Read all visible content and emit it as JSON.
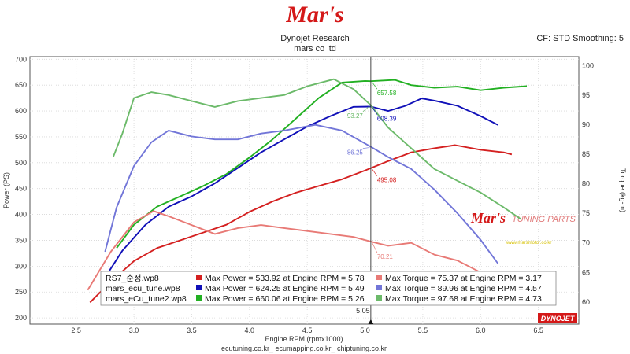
{
  "header": {
    "logo": "Mar's",
    "title": "Dynojet Research",
    "subtitle": "mars co ltd",
    "settings": "CF: STD Smoothing: 5"
  },
  "footer": {
    "credits": "ecutuning.co.kr_ ecumapping.co.kr_ chiptuning.co.kr",
    "brand": "DYNOJET"
  },
  "watermark": {
    "logo": "Mar's",
    "text": "TUNING PARTS",
    "url": "www.marsmotor.co.kr"
  },
  "colors": {
    "power_rs7": "#d42020",
    "power_tune": "#1010b8",
    "power_tune2": "#22b022",
    "torque_rs7": "#e87a76",
    "torque_tune": "#7276d8",
    "torque_tune2": "#6cba6a",
    "cursor": "#333333"
  },
  "chart_data": {
    "type": "line",
    "xlabel": "Engine RPM (rpmx1000)",
    "ylabel": "Power (PS)",
    "y2label": "Torque (kg-m)",
    "xlim": [
      2.1,
      6.85
    ],
    "ylim": [
      188,
      705
    ],
    "y2lim": [
      56.25,
      101.5
    ],
    "xticks": [
      "2.5",
      "3.0",
      "3.5",
      "4.0",
      "4.5",
      "5.0",
      "5.5",
      "6.0",
      "6.5"
    ],
    "yticks": [
      "200",
      "250",
      "300",
      "350",
      "400",
      "450",
      "500",
      "550",
      "600",
      "650",
      "700"
    ],
    "y2ticks": [
      "60",
      "65",
      "70",
      "75",
      "80",
      "85",
      "90",
      "95",
      "100"
    ],
    "grid": true,
    "cursor": {
      "x": 5.05,
      "label": "5.05",
      "annotations": [
        {
          "value": "657.58",
          "series": "power_tune2"
        },
        {
          "value": "608.39",
          "series": "power_tune"
        },
        {
          "value": "495.08",
          "series": "power_rs7"
        },
        {
          "value": "93.27",
          "series": "torque_tune2"
        },
        {
          "value": "86.25",
          "series": "torque_tune"
        },
        {
          "value": "70.21",
          "series": "torque_rs7"
        }
      ]
    },
    "runs": [
      {
        "name": "RS7_순정.wp8",
        "power": "Max Power = 533.92 at Engine RPM = 5.78",
        "torque": "Max Torque = 75.37 at Engine RPM = 3.17"
      },
      {
        "name": "mars_ecu_tune.wp8",
        "power": "Max Power = 624.25 at Engine RPM = 5.49",
        "torque": "Max Torque = 89.96 at Engine RPM = 4.57"
      },
      {
        "name": "mars_eCu_tune2.wp8",
        "power": "Max Power = 660.06 at Engine RPM = 5.26",
        "torque": "Max Torque = 97.68 at Engine RPM = 4.73"
      }
    ],
    "series": [
      {
        "key": "power_rs7",
        "axis": "left",
        "x": [
          2.62,
          2.8,
          3.0,
          3.2,
          3.4,
          3.6,
          3.8,
          4.0,
          4.2,
          4.4,
          4.6,
          4.8,
          5.0,
          5.2,
          5.4,
          5.6,
          5.78,
          6.0,
          6.2,
          6.27
        ],
        "y": [
          230,
          270,
          310,
          335,
          350,
          365,
          380,
          405,
          425,
          442,
          455,
          468,
          485,
          503,
          520,
          528,
          533.92,
          525,
          520,
          516
        ]
      },
      {
        "key": "power_tune",
        "axis": "left",
        "x": [
          2.75,
          2.9,
          3.1,
          3.3,
          3.5,
          3.7,
          3.9,
          4.1,
          4.3,
          4.5,
          4.7,
          4.9,
          5.05,
          5.2,
          5.35,
          5.49,
          5.6,
          5.8,
          6.0,
          6.15
        ],
        "y": [
          278,
          330,
          380,
          415,
          435,
          460,
          490,
          520,
          545,
          570,
          590,
          608,
          608.39,
          600,
          610,
          624.25,
          620,
          610,
          590,
          573
        ]
      },
      {
        "key": "power_tune2",
        "axis": "left",
        "x": [
          2.85,
          3.0,
          3.2,
          3.4,
          3.6,
          3.8,
          4.0,
          4.2,
          4.4,
          4.6,
          4.8,
          5.0,
          5.05,
          5.26,
          5.4,
          5.6,
          5.8,
          6.0,
          6.2,
          6.4
        ],
        "y": [
          335,
          380,
          415,
          435,
          455,
          478,
          510,
          545,
          585,
          625,
          655,
          658,
          657.58,
          660.06,
          650,
          645,
          647,
          640,
          645,
          648
        ]
      },
      {
        "key": "torque_rs7",
        "axis": "right",
        "x": [
          2.6,
          2.8,
          3.0,
          3.17,
          3.3,
          3.5,
          3.7,
          3.9,
          4.1,
          4.3,
          4.5,
          4.7,
          4.9,
          5.05,
          5.2,
          5.4,
          5.6,
          5.8,
          6.0,
          6.1
        ],
        "y": [
          62,
          68.5,
          73.5,
          75.37,
          74.5,
          73,
          71.5,
          72.5,
          73,
          72.5,
          72,
          71.5,
          71,
          70.21,
          69.5,
          70,
          68,
          67,
          65,
          63.5
        ]
      },
      {
        "key": "torque_tune",
        "axis": "right",
        "x": [
          2.75,
          2.85,
          3.0,
          3.15,
          3.3,
          3.5,
          3.7,
          3.9,
          4.1,
          4.3,
          4.57,
          4.8,
          5.05,
          5.2,
          5.4,
          5.6,
          5.8,
          6.0,
          6.15
        ],
        "y": [
          68.5,
          76,
          83,
          87,
          89,
          88,
          87.5,
          87.5,
          88.5,
          89,
          89.96,
          89,
          86.25,
          84.5,
          82.5,
          79,
          75,
          70.5,
          66.5
        ]
      },
      {
        "key": "torque_tune2",
        "axis": "right",
        "x": [
          2.82,
          2.9,
          3.0,
          3.15,
          3.3,
          3.5,
          3.7,
          3.9,
          4.1,
          4.3,
          4.5,
          4.73,
          4.9,
          5.05,
          5.2,
          5.4,
          5.6,
          5.8,
          6.0,
          6.2,
          6.35
        ],
        "y": [
          84.5,
          88.5,
          94.5,
          95.5,
          95,
          94,
          93,
          94,
          94.5,
          95,
          96.5,
          97.68,
          96,
          93.27,
          89.5,
          86,
          82.5,
          80.5,
          78.5,
          76,
          74
        ]
      }
    ]
  }
}
